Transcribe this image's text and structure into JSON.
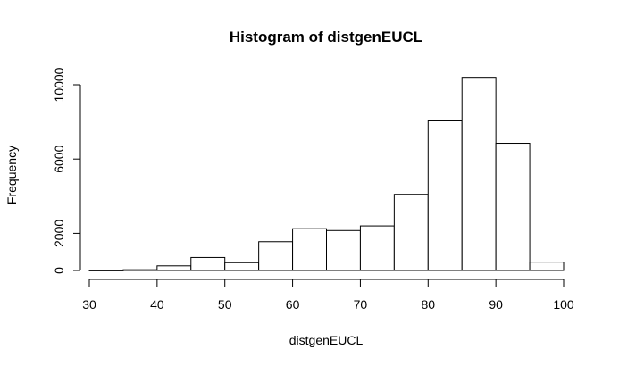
{
  "chart_data": {
    "type": "bar",
    "title": "Histogram of distgenEUCL",
    "xlabel": "distgenEUCL",
    "ylabel": "Frequency",
    "bins": [
      {
        "x0": 30,
        "x1": 35,
        "value": 10
      },
      {
        "x0": 35,
        "x1": 40,
        "value": 40
      },
      {
        "x0": 40,
        "x1": 45,
        "value": 250
      },
      {
        "x0": 45,
        "x1": 50,
        "value": 700
      },
      {
        "x0": 50,
        "x1": 55,
        "value": 420
      },
      {
        "x0": 55,
        "x1": 60,
        "value": 1550
      },
      {
        "x0": 60,
        "x1": 65,
        "value": 2250
      },
      {
        "x0": 65,
        "x1": 70,
        "value": 2150
      },
      {
        "x0": 70,
        "x1": 75,
        "value": 2400
      },
      {
        "x0": 75,
        "x1": 80,
        "value": 4100
      },
      {
        "x0": 80,
        "x1": 85,
        "value": 8100
      },
      {
        "x0": 85,
        "x1": 90,
        "value": 10400
      },
      {
        "x0": 90,
        "x1": 95,
        "value": 6850
      },
      {
        "x0": 95,
        "x1": 100,
        "value": 450
      }
    ],
    "xticks": [
      30,
      40,
      50,
      60,
      70,
      80,
      90,
      100
    ],
    "yticks": [
      0,
      2000,
      6000,
      10000
    ],
    "xlim": [
      30,
      100
    ],
    "ylim": [
      0,
      10000
    ],
    "grid": false,
    "colors": {
      "bar_fill": "#ffffff",
      "bar_stroke": "#000000"
    }
  }
}
